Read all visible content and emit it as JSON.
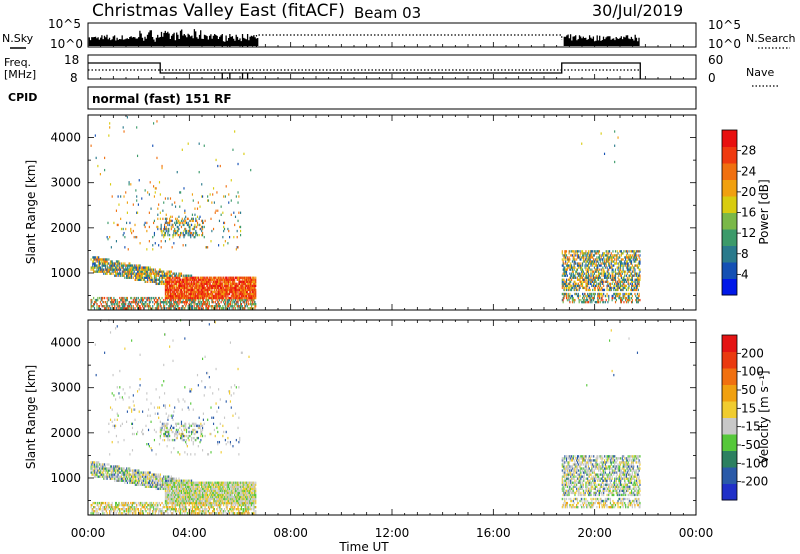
{
  "header": {
    "station": "Christmas Valley East (fitACF)",
    "beam": "Beam 03",
    "date": "30/Jul/2019"
  },
  "panels": {
    "nsky_label": "N.Sky",
    "nsky_ticks": [
      "10^5",
      "10^0"
    ],
    "nsearch_label": "N.Search",
    "nsearch_ticks": [
      "10^5",
      "10^0"
    ],
    "freq_label": "Freq.",
    "freq_unit": "[MHz]",
    "freq_ticks": [
      "18",
      "8"
    ],
    "nave_label": "Nave",
    "nave_ticks": [
      "60",
      "0"
    ],
    "cpid_label": "CPID",
    "cpid_text": "normal (fast) 151 RF"
  },
  "chart_data": [
    {
      "type": "heatmap",
      "name": "power",
      "ylabel": "Slant Range [km]",
      "yticks": [
        "4000",
        "3000",
        "2000",
        "1000"
      ],
      "ylim": [
        180,
        4500
      ],
      "xlim": [
        0,
        24
      ],
      "colorbar_label": "Power [dB]",
      "colorbar_ticks": [
        "28",
        "24",
        "20",
        "16",
        "12",
        "8",
        "4"
      ],
      "colors": [
        "#0018e8",
        "#1450b4",
        "#2a7a8c",
        "#3c9a6a",
        "#7ab848",
        "#d8cc10",
        "#f0a010",
        "#f07010",
        "#ef3a10",
        "#e81010"
      ],
      "data_intervals_ut": [
        [
          0.0,
          6.6
        ],
        [
          18.7,
          21.8
        ]
      ]
    },
    {
      "type": "heatmap",
      "name": "velocity",
      "ylabel": "Slant Range [km]",
      "yticks": [
        "4000",
        "3000",
        "2000",
        "1000"
      ],
      "ylim": [
        180,
        4500
      ],
      "xlim": [
        0,
        24
      ],
      "colorbar_label": "Velocity [m s⁻¹]",
      "colorbar_ticks": [
        "200",
        "100",
        "50",
        "15",
        "-15",
        "-50",
        "-100",
        "-200"
      ],
      "colors": [
        "#2030c8",
        "#2a5aa8",
        "#2c8060",
        "#56c83a",
        "#c8c8c8",
        "#f0cc30",
        "#f0a010",
        "#f07010",
        "#ea3a10",
        "#e41414"
      ],
      "data_intervals_ut": [
        [
          0.0,
          6.6
        ],
        [
          18.7,
          21.8
        ]
      ]
    }
  ],
  "xaxis": {
    "ticks": [
      "00:00",
      "04:00",
      "08:00",
      "12:00",
      "16:00",
      "20:00",
      "00:00"
    ],
    "label": "Time UT"
  }
}
